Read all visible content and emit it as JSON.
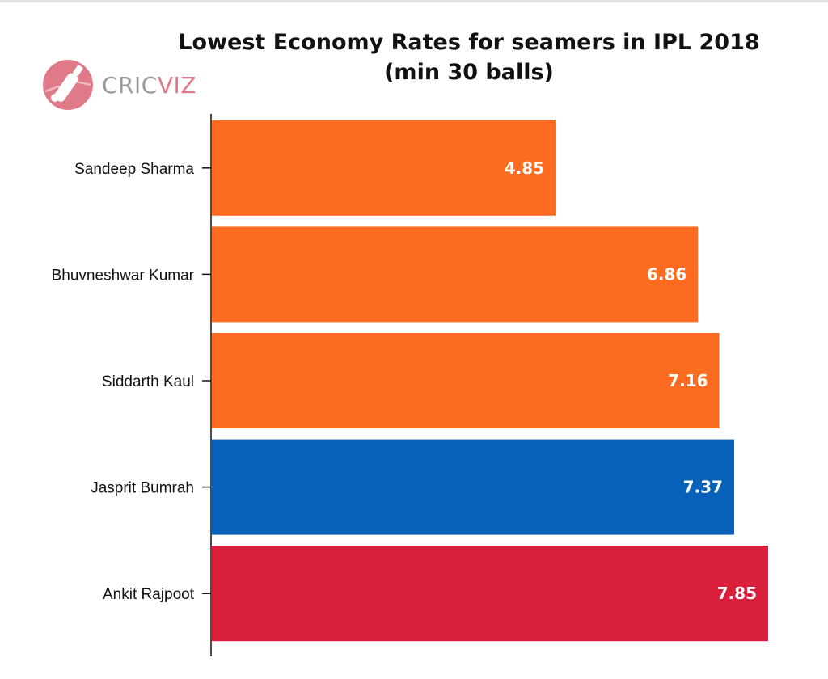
{
  "chart_data": {
    "type": "bar",
    "orientation": "horizontal",
    "title": "Lowest Economy Rates for seamers in IPL 2018 (min 30 balls)",
    "categories": [
      "Sandeep Sharma",
      "Bhuvneshwar Kumar",
      "Siddarth Kaul",
      "Jasprit Bumrah",
      "Ankit Rajpoot"
    ],
    "values": [
      4.85,
      6.86,
      7.16,
      7.37,
      7.85
    ],
    "value_labels": [
      "4.85",
      "6.86",
      "7.16",
      "7.37",
      "7.85"
    ],
    "colors": [
      "#fd6b20",
      "#fd6b20",
      "#fd6b20",
      "#0861b8",
      "#d91f3b"
    ],
    "xlabel": "",
    "ylabel": "",
    "xlim": [
      0,
      7.85
    ],
    "grid": false,
    "legend": "none"
  },
  "logo": {
    "text_part1": "CRIC",
    "text_part2": "VIZ",
    "icon": "cricket-bat-ball-icon",
    "circle_color": "#e07a88",
    "text_color_part1": "#9a9a9a",
    "text_color_part2": "#e07a88"
  }
}
